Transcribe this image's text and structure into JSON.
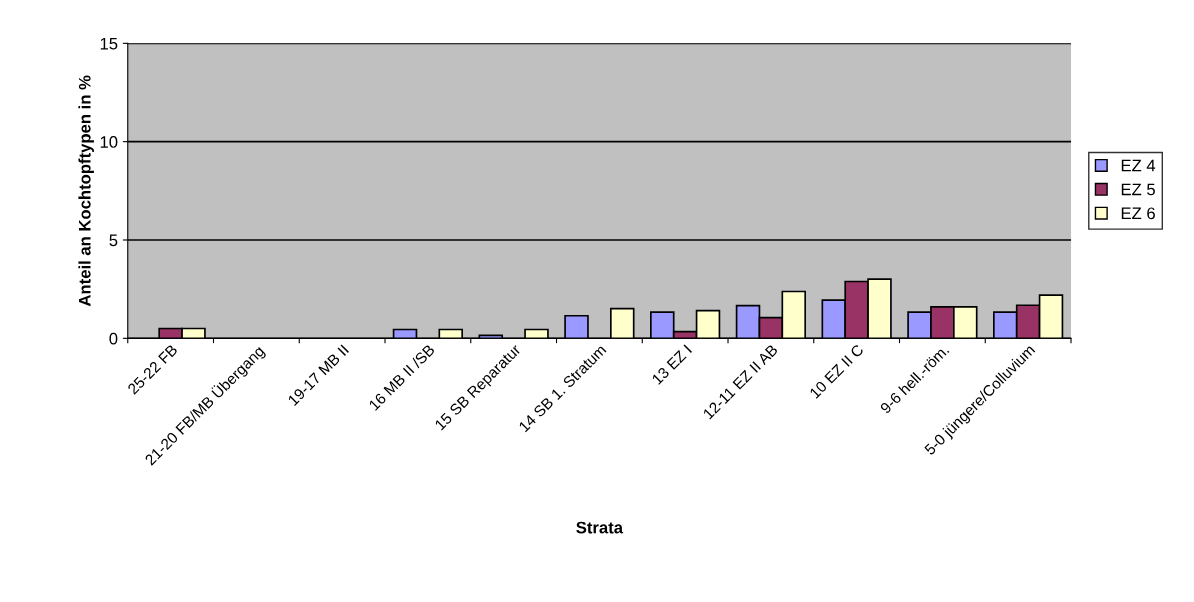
{
  "chart_data": {
    "type": "bar",
    "xlabel": "Strata",
    "ylabel": "Anteil an Kochtopftypen in %",
    "categories": [
      "25-22 FB",
      "21-20 FB/MB Übergang",
      "19-17 MB II",
      "16 MB II /SB",
      "15 SB Reparatur",
      "14 SB 1. Stratum",
      "13 EZ I",
      "12-11 EZ II AB",
      "10 EZ II C",
      "9-6 hell.-röm.",
      "5-0 jüngere/Colluvium"
    ],
    "series": [
      {
        "name": "EZ 4",
        "color": "#9999ff",
        "values": [
          0,
          0,
          0,
          0.45,
          0.15,
          1.15,
          1.33,
          1.66,
          1.94,
          1.33,
          1.33
        ]
      },
      {
        "name": "EZ 5",
        "color": "#993366",
        "values": [
          0.5,
          0,
          0,
          0,
          0,
          0,
          0.34,
          1.05,
          2.89,
          1.6,
          1.68
        ]
      },
      {
        "name": "EZ 6",
        "color": "#ffffcc",
        "values": [
          0.5,
          0,
          0,
          0.45,
          0.45,
          1.51,
          1.41,
          2.38,
          3.01,
          1.6,
          2.2
        ]
      }
    ],
    "ylim": [
      0,
      15
    ],
    "yticks": [
      0,
      5,
      10,
      15
    ],
    "grid": "y",
    "legend": "right"
  }
}
